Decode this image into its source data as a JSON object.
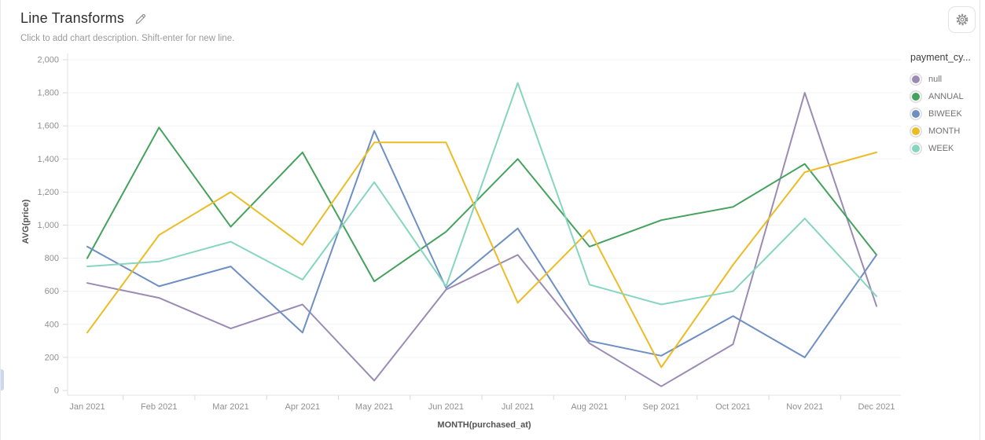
{
  "header": {
    "title": "Line Transforms",
    "subtitle": "Click to add chart description. Shift-enter for new line."
  },
  "legend": {
    "title": "payment_cy..."
  },
  "icons": {
    "edit": "pencil-icon",
    "settings": "gear-icon"
  },
  "chart_data": {
    "type": "line",
    "title": "Line Transforms",
    "xlabel": "MONTH(purchased_at)",
    "ylabel": "AVG(price)",
    "ylim": [
      0,
      2000
    ],
    "y_tick_step": 200,
    "y_tick_labels": [
      "0",
      "200",
      "400",
      "600",
      "800",
      "1,000",
      "1,200",
      "1,400",
      "1,600",
      "1,800",
      "2,000"
    ],
    "grid": true,
    "legend_position": "right",
    "categories": [
      "Jan 2021",
      "Feb 2021",
      "Mar 2021",
      "Apr 2021",
      "May 2021",
      "Jun 2021",
      "Jul 2021",
      "Aug 2021",
      "Sep 2021",
      "Oct 2021",
      "Nov 2021",
      "Dec 2021"
    ],
    "series": [
      {
        "name": "null",
        "color": "#9b8bb4",
        "values": [
          650,
          560,
          375,
          520,
          60,
          610,
          820,
          285,
          25,
          280,
          1800,
          510
        ]
      },
      {
        "name": "ANNUAL",
        "color": "#44a25c",
        "values": [
          800,
          1590,
          990,
          1440,
          660,
          960,
          1400,
          870,
          1030,
          1110,
          1370,
          820
        ]
      },
      {
        "name": "BIWEEK",
        "color": "#6e8fc3",
        "values": [
          870,
          630,
          750,
          350,
          1570,
          620,
          980,
          300,
          210,
          450,
          200,
          820
        ]
      },
      {
        "name": "MONTH",
        "color": "#eabd27",
        "values": [
          350,
          940,
          1200,
          880,
          1500,
          1500,
          530,
          970,
          140,
          760,
          1320,
          1440
        ]
      },
      {
        "name": "WEEK",
        "color": "#86d6bf",
        "values": [
          750,
          780,
          900,
          670,
          1260,
          630,
          1860,
          640,
          520,
          600,
          1040,
          570
        ]
      }
    ],
    "style": {
      "grid_color": "#f3f3f3",
      "axis_color": "#e3e3e3",
      "tick_color": "#d9d9d9",
      "tick_label_color": "#8f8f8f"
    }
  }
}
